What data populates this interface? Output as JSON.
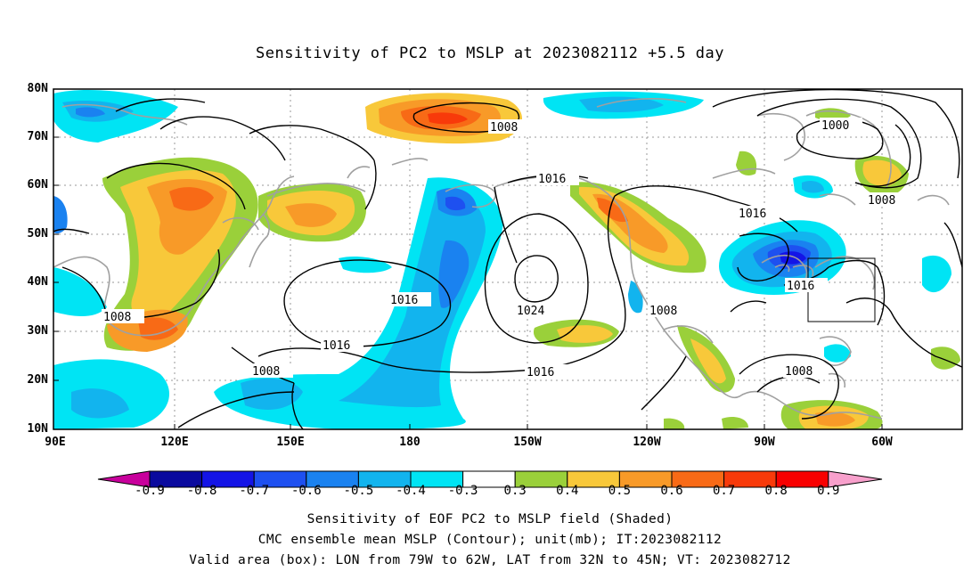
{
  "title": "Sensitivity of PC2 to MSLP at 2023082112 +5.5 day",
  "lat_labels": [
    "80N",
    "70N",
    "60N",
    "50N",
    "40N",
    "30N",
    "20N",
    "10N"
  ],
  "lon_labels": [
    "90E",
    "120E",
    "150E",
    "180",
    "150W",
    "120W",
    "90W",
    "60W"
  ],
  "colorbar": {
    "labels": [
      "-0.9",
      "-0.8",
      "-0.7",
      "-0.6",
      "-0.5",
      "-0.4",
      "-0.3",
      "0.3",
      "0.4",
      "0.5",
      "0.6",
      "0.7",
      "0.8",
      "0.9"
    ],
    "colors": [
      "#c8009c",
      "#0a0a9e",
      "#1414e6",
      "#1e50f0",
      "#1a82f0",
      "#12b4ee",
      "#00e4f4",
      "#ffffff",
      "#9ad03a",
      "#f8c83a",
      "#f89a28",
      "#f86a16",
      "#f83a0a",
      "#f80000",
      "#f8a0cc"
    ]
  },
  "contour_labels": [
    "1008",
    "1000",
    "1016",
    "1008",
    "1016",
    "1024",
    "1016",
    "1016",
    "1016",
    "1008",
    "1008",
    "1008",
    "1008",
    "1016"
  ],
  "captions": [
    "Sensitivity of EOF PC2 to MSLP field (Shaded)",
    "CMC ensemble mean MSLP (Contour); unit(mb); IT:2023082112",
    "Valid area (box): LON from 79W to 62W, LAT from 32N to 45N; VT: 2023082712"
  ]
}
